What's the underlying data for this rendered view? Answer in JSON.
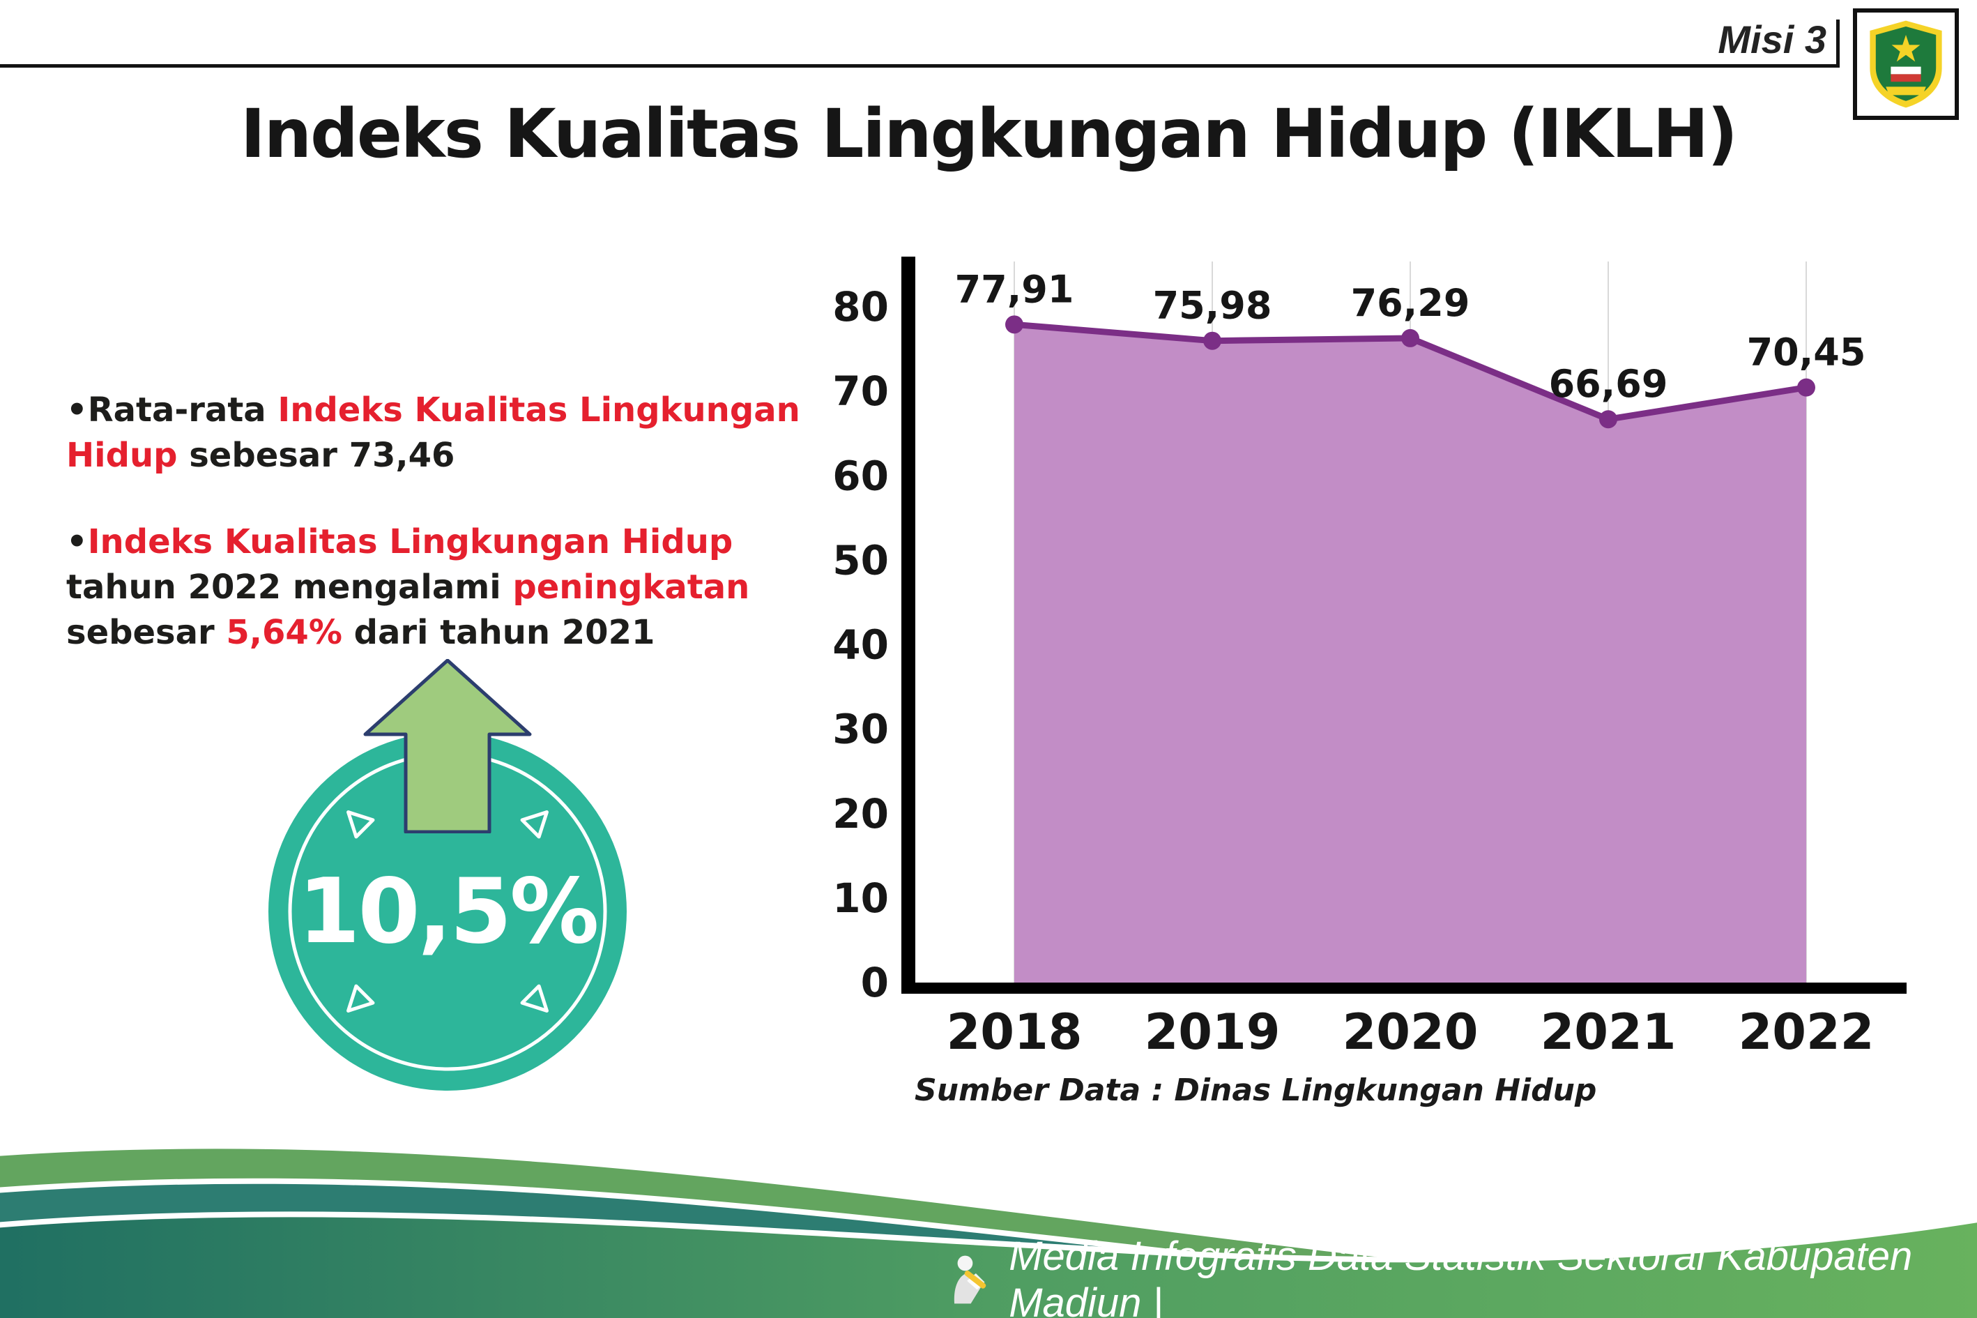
{
  "colors": {
    "accent_red": "#e5202e",
    "badge_teal": "#2db69a",
    "arrow_green": "#9fcb7e",
    "chart_area": "#c28dc6",
    "chart_line": "#7b2e86",
    "wave_green": "#63a55f",
    "wave_teal": "#2d7d72"
  },
  "header": {
    "misi": "Misi 3",
    "title": "Indeks Kualitas Lingkungan Hidup (IKLH)",
    "logo_alt": "Kabupaten Madiun"
  },
  "bullets": {
    "dot": "•",
    "b1_black1": "Rata-rata ",
    "b1_red": "Indeks Kualitas Lingkungan Hidup",
    "b1_black2": " sebesar 73,46",
    "b2_red1": "Indeks Kualitas Lingkungan Hidup",
    "b2_black1": " tahun 2022 mengalami ",
    "b2_red2": "peningkatan",
    "b2_black2": " sebesar ",
    "b2_red3": "5,64%",
    "b2_black3": " dari tahun 2021"
  },
  "badge": {
    "value": "10,5%"
  },
  "chart_data": {
    "type": "area",
    "categories": [
      "2018",
      "2019",
      "2020",
      "2021",
      "2022"
    ],
    "values": [
      77.91,
      75.98,
      76.29,
      66.69,
      70.45
    ],
    "point_labels": [
      "77,91",
      "75,98",
      "76,29",
      "66,69",
      "70,45"
    ],
    "ylim": [
      0,
      80
    ],
    "yticks": [
      0,
      10,
      20,
      30,
      40,
      50,
      60,
      70,
      80
    ],
    "grid": "vertical-light",
    "legend": "none",
    "colors": {
      "area": "#c28dc6",
      "line": "#7b2e86",
      "dot": "#7b2e86"
    },
    "source": "Sumber Data : Dinas Lingkungan Hidup"
  },
  "footer": {
    "text": "Media Infografis Data Statistik Sektoral Kabupaten Madiun |"
  }
}
